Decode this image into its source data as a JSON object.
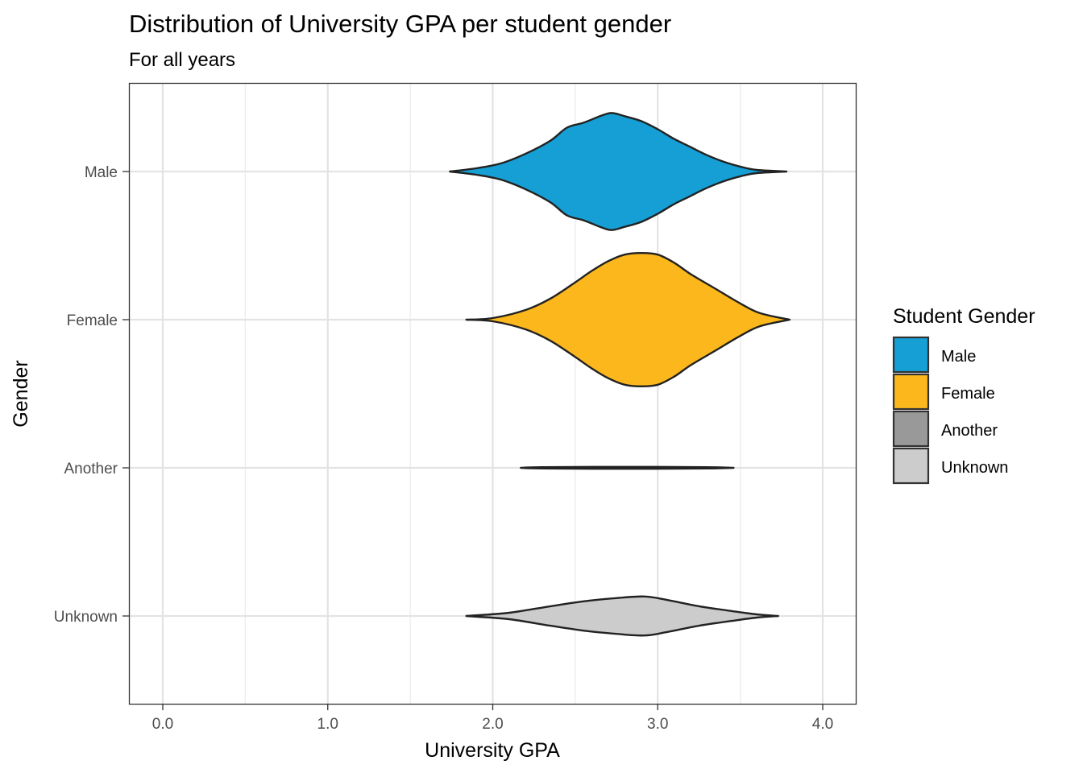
{
  "chart_data": {
    "type": "violin",
    "orientation": "horizontal",
    "title": "Distribution of University GPA per student gender",
    "subtitle": "For all years",
    "xlabel": "University GPA",
    "ylabel": "Gender",
    "xlim": [
      -0.1,
      4.2
    ],
    "x_ticks": [
      0,
      1,
      2,
      3,
      4
    ],
    "x_tick_labels": [
      "0.0",
      "1.0",
      "2.0",
      "3.0",
      "4.0"
    ],
    "x_minor_ticks": [
      0.5,
      1.5,
      2.5,
      3.5
    ],
    "grid": true,
    "legend": {
      "title": "Student Gender",
      "placement": "right",
      "items": [
        "Male",
        "Female",
        "Another",
        "Unknown"
      ]
    },
    "series": [
      {
        "name": "Male",
        "color": "#169fd4",
        "range": [
          1.74,
          3.78
        ],
        "density": [
          [
            1.74,
            0.0
          ],
          [
            1.9,
            0.02
          ],
          [
            2.05,
            0.05
          ],
          [
            2.2,
            0.11
          ],
          [
            2.35,
            0.19
          ],
          [
            2.45,
            0.27
          ],
          [
            2.55,
            0.3
          ],
          [
            2.65,
            0.34
          ],
          [
            2.72,
            0.36
          ],
          [
            2.8,
            0.34
          ],
          [
            2.9,
            0.31
          ],
          [
            3.0,
            0.26
          ],
          [
            3.1,
            0.2
          ],
          [
            3.2,
            0.15
          ],
          [
            3.3,
            0.1
          ],
          [
            3.4,
            0.06
          ],
          [
            3.5,
            0.03
          ],
          [
            3.6,
            0.01
          ],
          [
            3.78,
            0.0
          ]
        ]
      },
      {
        "name": "Female",
        "color": "#fcb71d",
        "range": [
          1.84,
          3.8
        ],
        "density": [
          [
            1.84,
            0.0
          ],
          [
            2.0,
            0.01
          ],
          [
            2.2,
            0.06
          ],
          [
            2.35,
            0.13
          ],
          [
            2.5,
            0.23
          ],
          [
            2.6,
            0.3
          ],
          [
            2.7,
            0.36
          ],
          [
            2.8,
            0.4
          ],
          [
            2.9,
            0.41
          ],
          [
            3.0,
            0.4
          ],
          [
            3.1,
            0.35
          ],
          [
            3.2,
            0.28
          ],
          [
            3.35,
            0.19
          ],
          [
            3.5,
            0.1
          ],
          [
            3.62,
            0.04
          ],
          [
            3.8,
            0.0
          ]
        ]
      },
      {
        "name": "Another",
        "color": "#999999",
        "range": [
          2.17,
          3.46
        ],
        "density": [
          [
            2.17,
            0.0
          ],
          [
            2.3,
            0.004
          ],
          [
            2.8,
            0.006
          ],
          [
            3.3,
            0.004
          ],
          [
            3.46,
            0.0
          ]
        ]
      },
      {
        "name": "Unknown",
        "color": "#cccccc",
        "range": [
          1.84,
          3.73
        ],
        "density": [
          [
            1.84,
            0.0
          ],
          [
            2.1,
            0.02
          ],
          [
            2.35,
            0.06
          ],
          [
            2.55,
            0.09
          ],
          [
            2.75,
            0.11
          ],
          [
            2.92,
            0.12
          ],
          [
            3.05,
            0.1
          ],
          [
            3.25,
            0.06
          ],
          [
            3.45,
            0.03
          ],
          [
            3.6,
            0.01
          ],
          [
            3.73,
            0.0
          ]
        ]
      }
    ]
  }
}
